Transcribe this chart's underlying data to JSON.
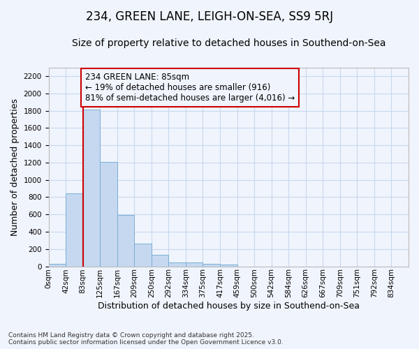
{
  "title": "234, GREEN LANE, LEIGH-ON-SEA, SS9 5RJ",
  "subtitle": "Size of property relative to detached houses in Southend-on-Sea",
  "xlabel": "Distribution of detached houses by size in Southend-on-Sea",
  "ylabel": "Number of detached properties",
  "bin_labels": [
    "0sqm",
    "42sqm",
    "83sqm",
    "125sqm",
    "167sqm",
    "209sqm",
    "250sqm",
    "292sqm",
    "334sqm",
    "375sqm",
    "417sqm",
    "459sqm",
    "500sqm",
    "542sqm",
    "584sqm",
    "626sqm",
    "667sqm",
    "709sqm",
    "751sqm",
    "792sqm",
    "834sqm"
  ],
  "bar_values": [
    25,
    845,
    1810,
    1210,
    595,
    260,
    130,
    45,
    45,
    30,
    20,
    0,
    0,
    0,
    0,
    0,
    0,
    0,
    0,
    0,
    0
  ],
  "bar_color": "#c5d8f0",
  "bar_edge_color": "#7aafd4",
  "grid_color": "#c8d8f0",
  "background_color": "#f0f4fc",
  "property_line_color": "#cc0000",
  "annotation_text": "234 GREEN LANE: 85sqm\n← 19% of detached houses are smaller (916)\n81% of semi-detached houses are larger (4,016) →",
  "annotation_box_color": "#cc0000",
  "ylim": [
    0,
    2300
  ],
  "yticks": [
    0,
    200,
    400,
    600,
    800,
    1000,
    1200,
    1400,
    1600,
    1800,
    2000,
    2200
  ],
  "footnote": "Contains HM Land Registry data © Crown copyright and database right 2025.\nContains public sector information licensed under the Open Government Licence v3.0.",
  "title_fontsize": 12,
  "subtitle_fontsize": 10,
  "tick_fontsize": 7.5,
  "label_fontsize": 9,
  "annotation_fontsize": 8.5
}
